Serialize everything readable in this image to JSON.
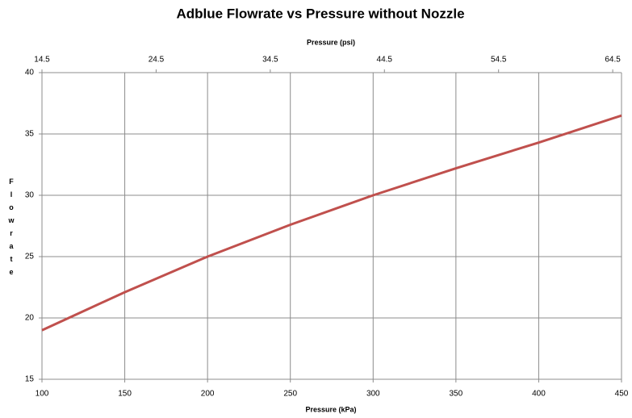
{
  "chart_data": {
    "type": "line",
    "title": "Adblue Flowrate vs Pressure without Nozzle",
    "x_label": "Pressure (kPa)",
    "x2_label": "Pressure (psi)",
    "y_label": "Flowrate",
    "x": [
      100,
      150,
      200,
      250,
      300,
      350,
      400,
      450
    ],
    "series": [
      {
        "name": "Flowrate",
        "color": "#c0504d",
        "values": [
          19,
          22.1,
          25,
          27.6,
          30,
          32.2,
          34.3,
          36.5
        ]
      }
    ],
    "xlim": [
      100,
      450
    ],
    "xticks": [
      100,
      150,
      200,
      250,
      300,
      350,
      400,
      450
    ],
    "x2lim": [
      14.5,
      65.27
    ],
    "x2ticks": [
      14.5,
      24.5,
      34.5,
      44.5,
      54.5,
      64.5
    ],
    "ylim": [
      15,
      40
    ],
    "yticks": [
      15,
      20,
      25,
      30,
      35,
      40
    ],
    "grid": true
  }
}
